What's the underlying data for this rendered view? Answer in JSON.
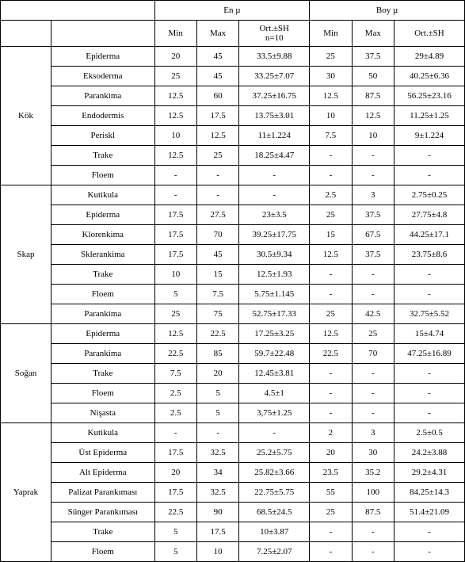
{
  "headers": {
    "en": "En µ",
    "boy": "Boy µ",
    "min": "Min",
    "max": "Max",
    "ort_en": "Ort.±SH\nn=10",
    "ort_boy": "Ort.±SH"
  },
  "groups": [
    {
      "name": "Kök",
      "rows": [
        {
          "label": "Epiderma",
          "en_min": "20",
          "en_max": "45",
          "en_ort": "33.5±9.88",
          "boy_min": "25",
          "boy_max": "37.5",
          "boy_ort": "29±4.89"
        },
        {
          "label": "Eksoderma",
          "en_min": "25",
          "en_max": "45",
          "en_ort": "33.25±7.07",
          "boy_min": "30",
          "boy_max": "50",
          "boy_ort": "40.25±6.36"
        },
        {
          "label": "Parankima",
          "en_min": "12.5",
          "en_max": "60",
          "en_ort": "37.25±16.75",
          "boy_min": "12.5",
          "boy_max": "87.5",
          "boy_ort": "56.25±23.16"
        },
        {
          "label": "Endodermis",
          "en_min": "12.5",
          "en_max": "17.5",
          "en_ort": "13.75±3.01",
          "boy_min": "10",
          "boy_max": "12.5",
          "boy_ort": "11.25±1.25"
        },
        {
          "label": "Periskl",
          "en_min": "10",
          "en_max": "12.5",
          "en_ort": "11±1.224",
          "boy_min": "7.5",
          "boy_max": "10",
          "boy_ort": "9±1.224"
        },
        {
          "label": "Trake",
          "en_min": "12.5",
          "en_max": "25",
          "en_ort": "18.25±4.47",
          "boy_min": "-",
          "boy_max": "-",
          "boy_ort": "-"
        },
        {
          "label": "Floem",
          "en_min": "-",
          "en_max": "-",
          "en_ort": "-",
          "boy_min": "-",
          "boy_max": "-",
          "boy_ort": "-"
        }
      ]
    },
    {
      "name": "Skap",
      "rows": [
        {
          "label": "Kutikula",
          "en_min": "-",
          "en_max": "-",
          "en_ort": "-",
          "boy_min": "2.5",
          "boy_max": "3",
          "boy_ort": "2.75±0.25"
        },
        {
          "label": "Epiderma",
          "en_min": "17.5",
          "en_max": "27.5",
          "en_ort": "23±3.5",
          "boy_min": "25",
          "boy_max": "37.5",
          "boy_ort": "27.75±4.8"
        },
        {
          "label": "Klorenkima",
          "en_min": "17.5",
          "en_max": "70",
          "en_ort": "39.25±17.75",
          "boy_min": "15",
          "boy_max": "67.5",
          "boy_ort": "44.25±17.1"
        },
        {
          "label": "Sklerankima",
          "en_min": "17.5",
          "en_max": "45",
          "en_ort": "30.5±9.34",
          "boy_min": "12.5",
          "boy_max": "37.5",
          "boy_ort": "23.75±8.6"
        },
        {
          "label": "Trake",
          "en_min": "10",
          "en_max": "15",
          "en_ort": "12.5±1.93",
          "boy_min": "-",
          "boy_max": "-",
          "boy_ort": "-"
        },
        {
          "label": "Floem",
          "en_min": "5",
          "en_max": "7.5",
          "en_ort": "5.75±1.145",
          "boy_min": "-",
          "boy_max": "-",
          "boy_ort": "-"
        },
        {
          "label": "Parankima",
          "en_min": "25",
          "en_max": "75",
          "en_ort": "52.75±17.33",
          "boy_min": "25",
          "boy_max": "42.5",
          "boy_ort": "32.75±5.52"
        }
      ]
    },
    {
      "name": "Soğan",
      "rows": [
        {
          "label": "Epiderma",
          "en_min": "12.5",
          "en_max": "22.5",
          "en_ort": "17.25±3.25",
          "boy_min": "12.5",
          "boy_max": "25",
          "boy_ort": "15±4.74"
        },
        {
          "label": "Parankima",
          "en_min": "22.5",
          "en_max": "85",
          "en_ort": "59.7±22.48",
          "boy_min": "22.5",
          "boy_max": "70",
          "boy_ort": "47.25±16.89"
        },
        {
          "label": "Trake",
          "en_min": "7.5",
          "en_max": "20",
          "en_ort": "12.45±3.81",
          "boy_min": "-",
          "boy_max": "-",
          "boy_ort": "-"
        },
        {
          "label": "Floem",
          "en_min": "2.5",
          "en_max": "5",
          "en_ort": "4.5±1",
          "boy_min": "-",
          "boy_max": "-",
          "boy_ort": "-"
        },
        {
          "label": "Nişasta",
          "en_min": "2.5",
          "en_max": "5",
          "en_ort": "3,75±1.25",
          "boy_min": "-",
          "boy_max": "-",
          "boy_ort": "-"
        }
      ]
    },
    {
      "name": "Yaprak",
      "rows": [
        {
          "label": "Kutikula",
          "en_min": "-",
          "en_max": "-",
          "en_ort": "-",
          "boy_min": "2",
          "boy_max": "3",
          "boy_ort": "2.5±0.5"
        },
        {
          "label": "Üst Epiderma",
          "en_min": "17.5",
          "en_max": "32.5",
          "en_ort": "25.2±5.75",
          "boy_min": "20",
          "boy_max": "30",
          "boy_ort": "24.2±3.88"
        },
        {
          "label": "Alt Epiderma",
          "en_min": "20",
          "en_max": "34",
          "en_ort": "25.82±3.66",
          "boy_min": "23.5",
          "boy_max": "35.2",
          "boy_ort": "29.2±4.31"
        },
        {
          "label": "Palizat Parankıması",
          "en_min": "17.5",
          "en_max": "32.5",
          "en_ort": "22.75±5.75",
          "boy_min": "55",
          "boy_max": "100",
          "boy_ort": "84.25±14.3"
        },
        {
          "label": "Sünger Parankıması",
          "en_min": "22.5",
          "en_max": "90",
          "en_ort": "68.5±24.5",
          "boy_min": "25",
          "boy_max": "87.5",
          "boy_ort": "51.4±21.09"
        },
        {
          "label": "Trake",
          "en_min": "5",
          "en_max": "17.5",
          "en_ort": "10±3.87",
          "boy_min": "-",
          "boy_max": "-",
          "boy_ort": "-"
        },
        {
          "label": "Floem",
          "en_min": "5",
          "en_max": "10",
          "en_ort": "7.25±2.07",
          "boy_min": "-",
          "boy_max": "-",
          "boy_ort": "-"
        }
      ]
    }
  ]
}
